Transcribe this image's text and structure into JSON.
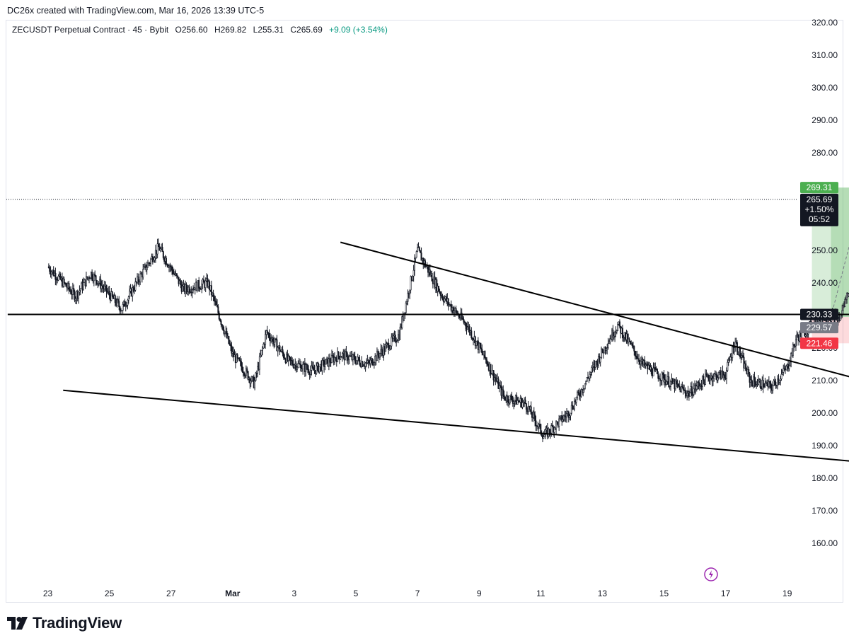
{
  "header": {
    "caption": "DC26x created with TradingView.com, Mar 16, 2026 13:39 UTC-5"
  },
  "legend": {
    "symbol": "ZECUSDT Perpetual Contract · 45 · Bybit",
    "open": "O256.60",
    "high": "H269.82",
    "low": "L255.31",
    "close": "C265.69",
    "change": "+9.09 (+3.54%)"
  },
  "brand": {
    "name": "TradingView",
    "logo_icon": "tradingview-logo-icon"
  },
  "colors": {
    "up": "#089981",
    "candle": "#131722",
    "profit": "#4caf50",
    "loss": "#f23645",
    "profit_zone": "rgba(76,175,80,0.22)",
    "loss_zone": "rgba(242,54,69,0.18)"
  },
  "chart_data": {
    "type": "candlestick",
    "title": "ZECUSDT Perpetual Contract · 45 · Bybit",
    "ylim": [
      152,
      326
    ],
    "y_ticks": [
      "160.00",
      "170.00",
      "180.00",
      "190.00",
      "200.00",
      "210.00",
      "220.00",
      "230.00",
      "240.00",
      "250.00",
      "260.00",
      "270.00",
      "280.00",
      "290.00",
      "300.00",
      "310.00",
      "320.00"
    ],
    "x_ticks": [
      "23",
      "25",
      "27",
      "Mar",
      "3",
      "5",
      "7",
      "9",
      "11",
      "13",
      "15",
      "17",
      "19"
    ],
    "grid": false,
    "price_path": [
      {
        "day": 0,
        "price": 245
      },
      {
        "day": 0.9,
        "price": 236
      },
      {
        "day": 1.4,
        "price": 243
      },
      {
        "day": 2.4,
        "price": 232
      },
      {
        "day": 3.0,
        "price": 242
      },
      {
        "day": 3.6,
        "price": 251
      },
      {
        "day": 4.4,
        "price": 238
      },
      {
        "day": 5.2,
        "price": 240
      },
      {
        "day": 6.0,
        "price": 218
      },
      {
        "day": 6.7,
        "price": 209
      },
      {
        "day": 7.1,
        "price": 225
      },
      {
        "day": 7.8,
        "price": 216
      },
      {
        "day": 8.6,
        "price": 213
      },
      {
        "day": 9.5,
        "price": 218
      },
      {
        "day": 10.4,
        "price": 215
      },
      {
        "day": 11.4,
        "price": 224
      },
      {
        "day": 12.0,
        "price": 250
      },
      {
        "day": 12.8,
        "price": 236
      },
      {
        "day": 13.6,
        "price": 227
      },
      {
        "day": 14.3,
        "price": 215
      },
      {
        "day": 14.8,
        "price": 205
      },
      {
        "day": 15.5,
        "price": 203
      },
      {
        "day": 16.1,
        "price": 193
      },
      {
        "day": 16.9,
        "price": 200
      },
      {
        "day": 17.6,
        "price": 212
      },
      {
        "day": 18.3,
        "price": 224
      },
      {
        "day": 18.5,
        "price": 227
      },
      {
        "day": 19.3,
        "price": 215
      },
      {
        "day": 20.1,
        "price": 210
      },
      {
        "day": 20.8,
        "price": 206
      },
      {
        "day": 21.4,
        "price": 211
      },
      {
        "day": 22.0,
        "price": 212
      },
      {
        "day": 22.3,
        "price": 222
      },
      {
        "day": 22.8,
        "price": 210
      },
      {
        "day": 23.5,
        "price": 208
      },
      {
        "day": 24.0,
        "price": 214
      },
      {
        "day": 24.3,
        "price": 223
      },
      {
        "day": 24.8,
        "price": 227
      },
      {
        "day": 25.3,
        "price": 230
      },
      {
        "day": 25.7,
        "price": 229
      },
      {
        "day": 26.0,
        "price": 238
      },
      {
        "day": 26.3,
        "price": 232
      },
      {
        "day": 26.5,
        "price": 265.69
      }
    ],
    "trendlines": [
      {
        "name": "descending resistance",
        "points": [
          [
            9.5,
            252.5
          ],
          [
            28.7,
            204.5
          ]
        ]
      },
      {
        "name": "descending support",
        "points": [
          [
            0.5,
            207
          ],
          [
            28.7,
            183
          ]
        ]
      },
      {
        "name": "horizontal level",
        "points": [
          [
            -1.3,
            230.33
          ],
          [
            28.7,
            230.33
          ]
        ]
      }
    ],
    "position": {
      "entry_day": 24.8,
      "end_day": 28.9,
      "entry_price": 229.57,
      "target_price": 269.31,
      "stop_price": 221.46,
      "reached_day": 26.5
    },
    "price_labels": {
      "target": "269.31",
      "last": [
        "265.69",
        "+1.50%",
        "05:52"
      ],
      "level": "230.33",
      "entry": "229.57",
      "stop": "221.46"
    },
    "last_price": 265.69,
    "alert_icon": "lightning-icon"
  }
}
